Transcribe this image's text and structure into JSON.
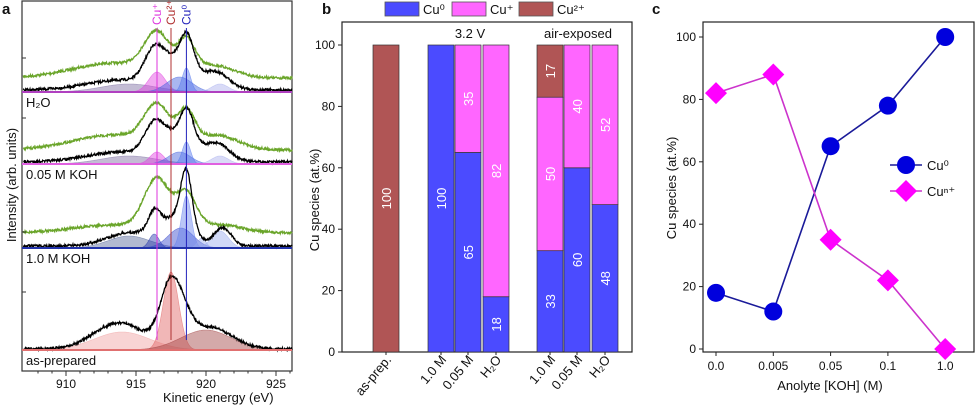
{
  "chart_data": [
    {
      "panel": "a",
      "type": "line",
      "xlabel": "Kinetic energy (eV)",
      "ylabel": "Intensity (arb. units)",
      "xlim": [
        906.9,
        926.2
      ],
      "xticks": [
        910,
        915,
        920,
        925
      ],
      "reference_lines": [
        {
          "label": "Cu⁺",
          "energy": 916.5,
          "color": "#dd33dd"
        },
        {
          "label": "Cu²⁺",
          "energy": 917.5,
          "color": "#b03030"
        },
        {
          "label": "Cu⁰",
          "energy": 918.6,
          "color": "#2222bb"
        }
      ],
      "spectra": [
        {
          "label": "H₂O",
          "baseline_color": "#b040c0",
          "black": {
            "offset": 0.02,
            "peaks": [
              [
                914,
                2.5,
                0.1
              ],
              [
                916.3,
                0.7,
                0.32
              ],
              [
                917.8,
                0.9,
                0.2
              ],
              [
                918.65,
                0.45,
                0.3
              ],
              [
                919.5,
                1.5,
                0.15
              ],
              [
                921,
                0.7,
                0.08
              ]
            ]
          },
          "green": {
            "offset": 0.14,
            "peaks": [
              [
                913.5,
                3,
                0.15
              ],
              [
                916.5,
                0.9,
                0.38
              ],
              [
                918.6,
                0.6,
                0.3
              ],
              [
                920.5,
                1.5,
                0.12
              ]
            ]
          },
          "components": [
            {
              "color": "#7a6aa0",
              "peak": [
                914.5,
                2,
                0.08
              ]
            },
            {
              "color": "#e040e0",
              "peak": [
                916.5,
                0.6,
                0.2
              ]
            },
            {
              "color": "#4060dd",
              "peak": [
                918.1,
                0.9,
                0.15
              ]
            },
            {
              "color": "#5577ee",
              "peak": [
                918.6,
                0.3,
                0.24
              ]
            },
            {
              "color": "#aab0ee",
              "peak": [
                921,
                0.6,
                0.08
              ]
            }
          ]
        },
        {
          "label": "0.05 M KOH",
          "baseline_color": "#e060e0",
          "black": {
            "offset": 0.02,
            "peaks": [
              [
                914,
                2.5,
                0.1
              ],
              [
                916.3,
                0.7,
                0.3
              ],
              [
                917.8,
                0.9,
                0.17
              ],
              [
                918.65,
                0.45,
                0.3
              ],
              [
                919.5,
                1.5,
                0.14
              ],
              [
                921,
                0.7,
                0.1
              ]
            ]
          },
          "green": {
            "offset": 0.14,
            "peaks": [
              [
                913.5,
                3,
                0.15
              ],
              [
                916.5,
                0.9,
                0.38
              ],
              [
                918.6,
                0.6,
                0.32
              ],
              [
                920.8,
                1.5,
                0.14
              ]
            ]
          },
          "components": [
            {
              "color": "#7a6aa0",
              "peak": [
                914.5,
                2,
                0.08
              ]
            },
            {
              "color": "#e040e0",
              "peak": [
                916.5,
                0.5,
                0.12
              ]
            },
            {
              "color": "#4060dd",
              "peak": [
                918.1,
                0.8,
                0.12
              ]
            },
            {
              "color": "#5577ee",
              "peak": [
                918.6,
                0.3,
                0.22
              ]
            },
            {
              "color": "#aab0ee",
              "peak": [
                921,
                0.6,
                0.08
              ]
            }
          ]
        },
        {
          "label": "1.0 M KOH",
          "baseline_color": "#2233aa",
          "black": {
            "offset": 0.02,
            "peaks": [
              [
                914.5,
                1.6,
                0.13
              ],
              [
                916.3,
                0.4,
                0.18
              ],
              [
                917,
                1,
                0.12
              ],
              [
                918.6,
                0.4,
                0.55
              ],
              [
                918.2,
                1,
                0.2
              ],
              [
                921.2,
                0.6,
                0.18
              ]
            ]
          },
          "green": {
            "offset": 0.15,
            "peaks": [
              [
                913.5,
                3,
                0.08
              ],
              [
                916.5,
                0.9,
                0.5
              ],
              [
                918.6,
                0.7,
                0.34
              ],
              [
                920.8,
                1.8,
                0.08
              ]
            ]
          },
          "components": [
            {
              "color": "#556699",
              "peak": [
                914.5,
                1.5,
                0.12
              ]
            },
            {
              "color": "#2233aa",
              "peak": [
                916.3,
                0.35,
                0.14
              ]
            },
            {
              "color": "#3344cc",
              "peak": [
                918.2,
                0.9,
                0.2
              ]
            },
            {
              "color": "#6680ee",
              "peak": [
                918.6,
                0.35,
                0.52
              ]
            },
            {
              "color": "#99aaee",
              "peak": [
                919.7,
                0.3,
                0.1
              ]
            },
            {
              "color": "#99aaee",
              "peak": [
                921,
                0.6,
                0.17
              ]
            }
          ]
        },
        {
          "label": "as-prepared",
          "baseline_color": "#e07070",
          "black": {
            "offset": 0.01,
            "peaks": [
              [
                913.8,
                1.8,
                0.26
              ],
              [
                917.5,
                0.75,
                0.62
              ],
              [
                918.6,
                0.6,
                0.12
              ],
              [
                920.2,
                1.6,
                0.22
              ]
            ]
          },
          "green": null,
          "components": [
            {
              "color": "#f0a0a0",
              "peak": [
                914,
                2,
                0.18
              ]
            },
            {
              "color": "#e06060",
              "peak": [
                917.5,
                0.55,
                0.78
              ]
            },
            {
              "color": "#a04040",
              "peak": [
                920,
                1.8,
                0.2
              ]
            }
          ]
        }
      ]
    },
    {
      "panel": "b",
      "type": "bar",
      "stacked": true,
      "ylabel": "Cu species (at.%)",
      "ylim": [
        0,
        100
      ],
      "yticks": [
        0,
        20,
        40,
        60,
        80,
        100
      ],
      "legend": [
        {
          "name": "Cu⁰",
          "color": "#4b4bff"
        },
        {
          "name": "Cu⁺",
          "color": "#ff66ff"
        },
        {
          "name": "Cu²⁺",
          "color": "#b05555"
        }
      ],
      "groups": [
        {
          "label": "",
          "categories": [
            "as-prep."
          ]
        },
        {
          "label": "3.2 V",
          "categories": [
            "1.0 M",
            "0.05 M",
            "H₂O"
          ]
        },
        {
          "label": "air-exposed",
          "categories": [
            "1.0 M",
            "0.05 M",
            "H₂O"
          ]
        }
      ],
      "bars": [
        {
          "category": "as-prep.",
          "values": [
            0,
            0,
            100
          ]
        },
        {
          "category": "1.0 M",
          "values": [
            100,
            0,
            0
          ]
        },
        {
          "category": "0.05 M",
          "values": [
            65,
            35,
            0
          ]
        },
        {
          "category": "H₂O",
          "values": [
            18,
            82,
            0
          ]
        },
        {
          "category": "1.0 M",
          "values": [
            33,
            50,
            17
          ]
        },
        {
          "category": "0.05 M",
          "values": [
            60,
            40,
            0
          ]
        },
        {
          "category": "H₂O",
          "values": [
            48,
            52,
            0
          ]
        }
      ]
    },
    {
      "panel": "c",
      "type": "line",
      "xlabel": "Anolyte [KOH] (M)",
      "ylabel": "Cu species (at.%)",
      "ylim": [
        0,
        100
      ],
      "yticks": [
        0,
        20,
        40,
        60,
        80,
        100
      ],
      "categories": [
        "0.0",
        "0.005",
        "0.05",
        "0.1",
        "1.0"
      ],
      "legend_position": "center-right",
      "series": [
        {
          "name": "Cu⁰",
          "marker": "circle",
          "color": "#0000dd",
          "line_color": "#1a1a99",
          "values": [
            18,
            12,
            65,
            78,
            100
          ]
        },
        {
          "name": "Cuⁿ⁺",
          "marker": "diamond",
          "color": "#ff00ff",
          "line_color": "#cc33cc",
          "values": [
            82,
            88,
            35,
            22,
            0
          ]
        }
      ]
    }
  ]
}
